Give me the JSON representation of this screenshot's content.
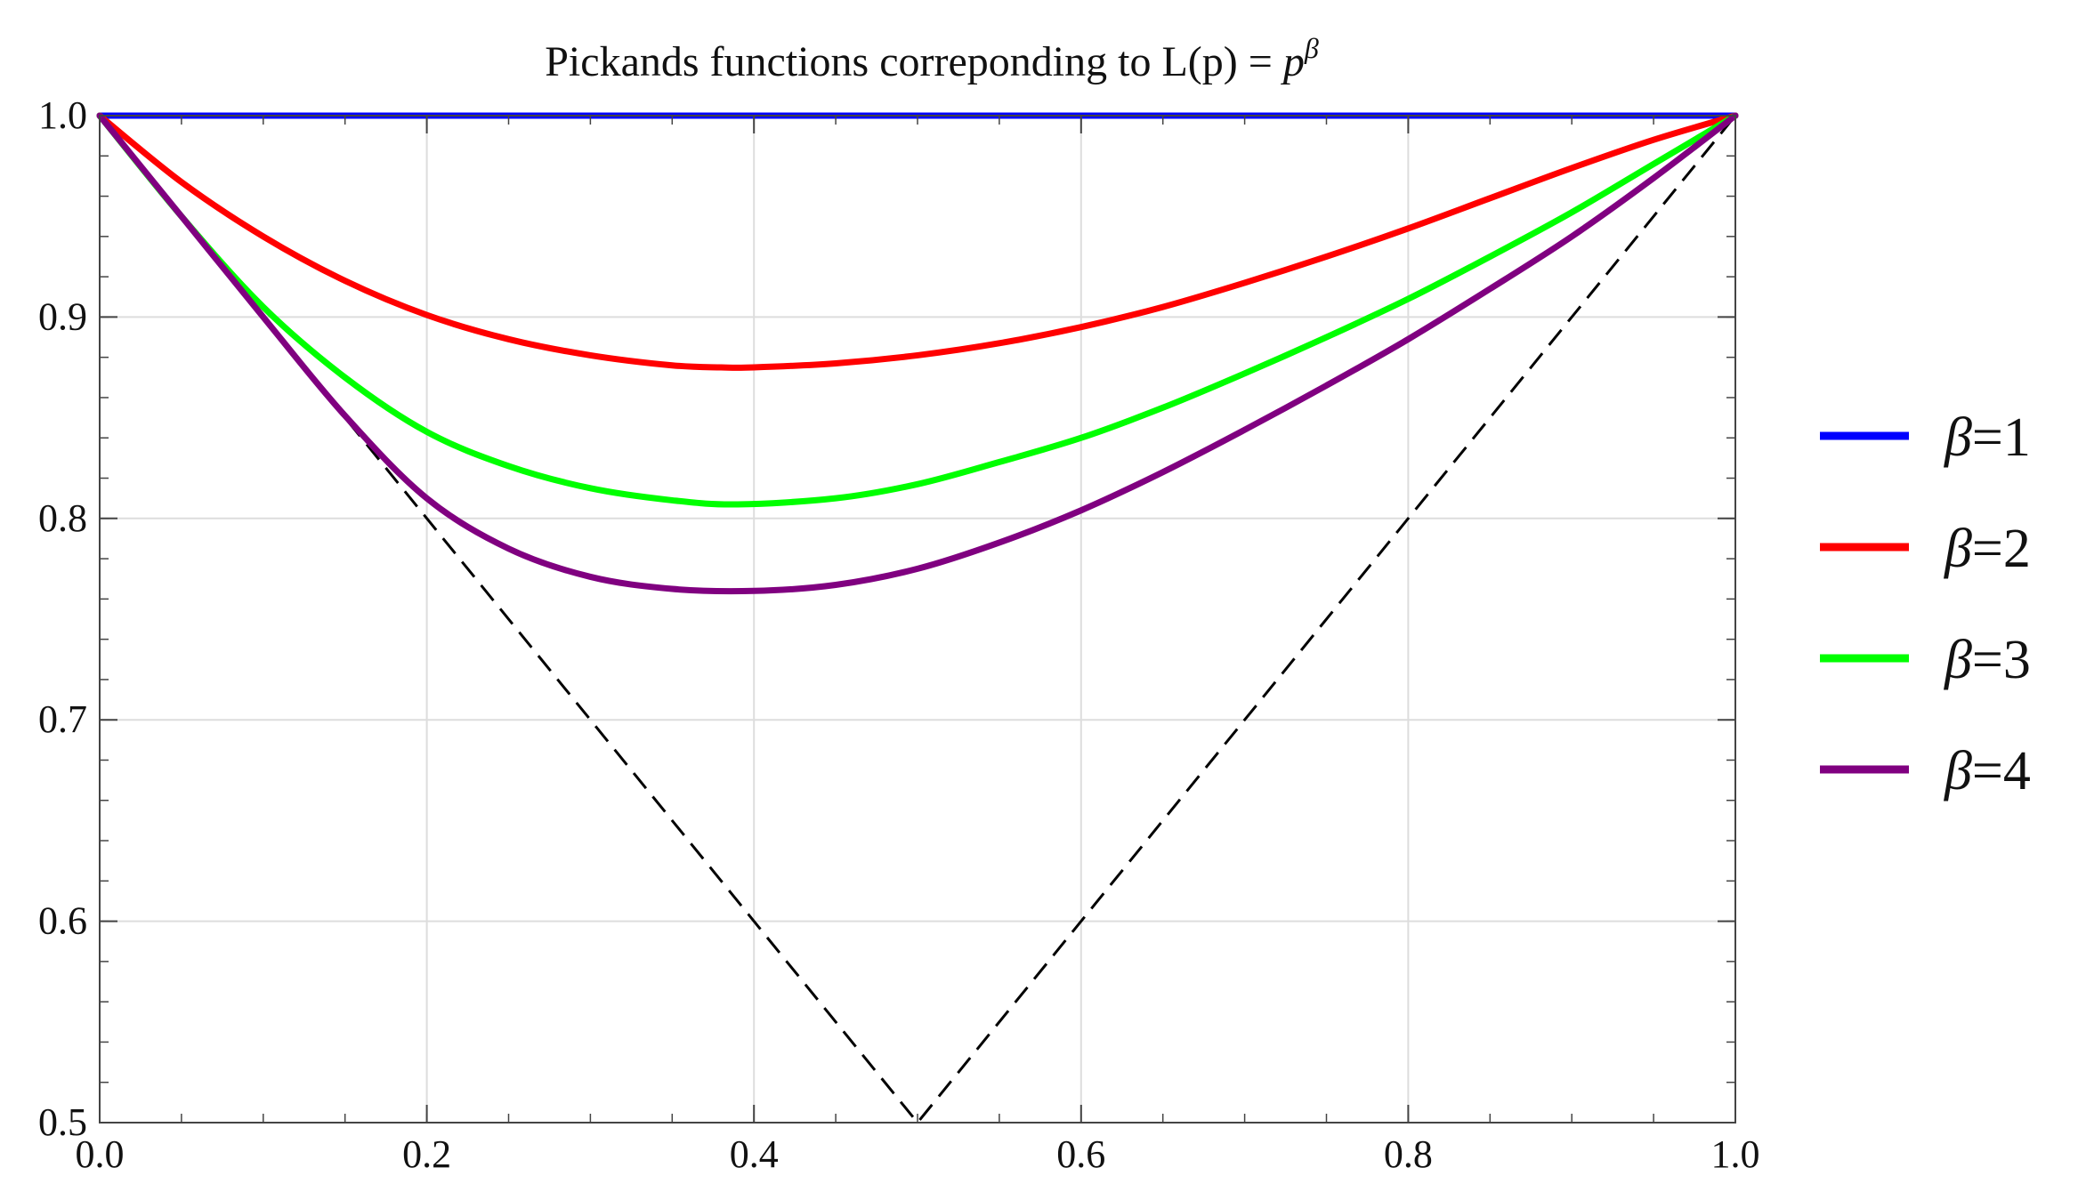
{
  "chart_data": {
    "type": "line",
    "title": "Pickands functions correponding to L(p) = ",
    "title_math": "p",
    "title_superscript": "β",
    "xlabel": "",
    "ylabel": "",
    "xlim": [
      0.0,
      1.0
    ],
    "ylim": [
      0.5,
      1.0
    ],
    "x_ticks": [
      "0.0",
      "0.2",
      "0.4",
      "0.6",
      "0.8",
      "1.0"
    ],
    "y_ticks": [
      "1.0",
      "0.9",
      "0.8",
      "0.7",
      "0.6",
      "0.5"
    ],
    "grid": true,
    "legend_position": "right",
    "series": [
      {
        "name": "β=1",
        "symbol": "β",
        "value_label": "=1",
        "color": "#0000ff",
        "style": "solid",
        "x": [
          0.0,
          1.0
        ],
        "y": [
          1.0,
          1.0
        ]
      },
      {
        "name": "β=2",
        "symbol": "β",
        "value_label": "=2",
        "color": "#ff0000",
        "style": "solid",
        "x": [
          0.0,
          0.05,
          0.1,
          0.15,
          0.2,
          0.25,
          0.3,
          0.35,
          0.38,
          0.4,
          0.45,
          0.5,
          0.55,
          0.6,
          0.65,
          0.7,
          0.75,
          0.8,
          0.85,
          0.9,
          0.95,
          1.0
        ],
        "y": [
          1.0,
          0.967,
          0.94,
          0.918,
          0.901,
          0.889,
          0.881,
          0.876,
          0.875,
          0.875,
          0.877,
          0.881,
          0.887,
          0.895,
          0.905,
          0.917,
          0.93,
          0.944,
          0.959,
          0.974,
          0.988,
          1.0
        ]
      },
      {
        "name": "β=3",
        "symbol": "β",
        "value_label": "=3",
        "color": "#00ff00",
        "style": "solid",
        "x": [
          0.0,
          0.05,
          0.1,
          0.15,
          0.2,
          0.25,
          0.3,
          0.35,
          0.39,
          0.45,
          0.5,
          0.55,
          0.6,
          0.65,
          0.7,
          0.75,
          0.8,
          0.85,
          0.9,
          0.95,
          1.0
        ],
        "y": [
          1.0,
          0.95,
          0.905,
          0.87,
          0.843,
          0.826,
          0.815,
          0.809,
          0.807,
          0.81,
          0.817,
          0.828,
          0.84,
          0.855,
          0.872,
          0.89,
          0.909,
          0.93,
          0.952,
          0.976,
          1.0
        ]
      },
      {
        "name": "β=4",
        "symbol": "β",
        "value_label": "=4",
        "color": "#800080",
        "style": "solid",
        "x": [
          0.0,
          0.05,
          0.1,
          0.15,
          0.2,
          0.25,
          0.3,
          0.35,
          0.4,
          0.45,
          0.5,
          0.55,
          0.6,
          0.65,
          0.7,
          0.75,
          0.8,
          0.85,
          0.9,
          0.95,
          1.0
        ],
        "y": [
          1.0,
          0.95,
          0.9,
          0.851,
          0.81,
          0.785,
          0.771,
          0.765,
          0.764,
          0.767,
          0.775,
          0.788,
          0.804,
          0.823,
          0.844,
          0.866,
          0.889,
          0.914,
          0.94,
          0.969,
          1.0
        ]
      },
      {
        "name": "max(p, 1-p)",
        "color": "#000000",
        "style": "dashed",
        "x": [
          0.0,
          0.5,
          1.0
        ],
        "y": [
          1.0,
          0.5,
          1.0
        ]
      }
    ]
  }
}
